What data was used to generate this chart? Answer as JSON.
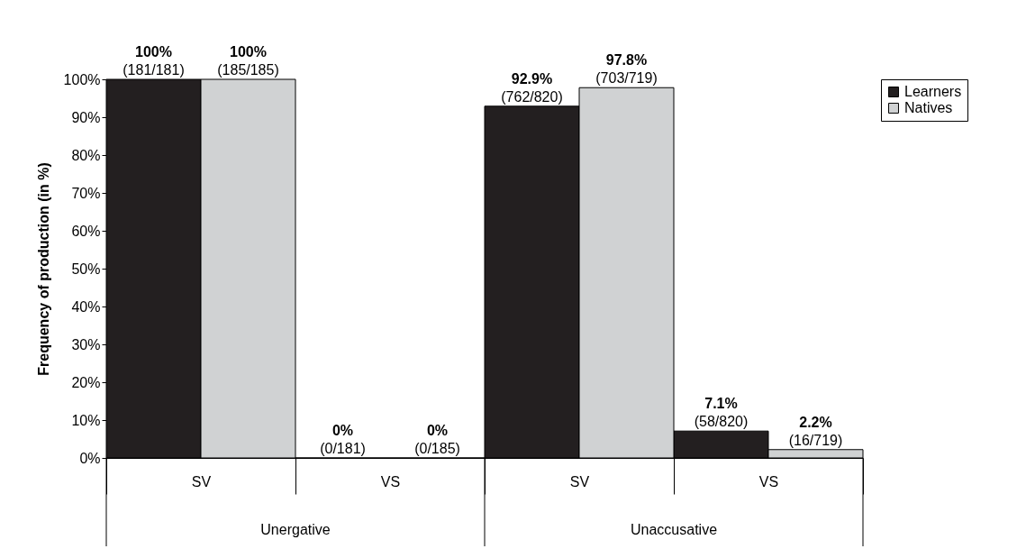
{
  "chart_data": {
    "type": "bar",
    "ylabel": "Frequency of production (in %)",
    "categories": [
      "SV",
      "VS",
      "SV",
      "VS"
    ],
    "series": [
      {
        "name": "Learners",
        "color": "#231f20",
        "values": [
          100,
          0,
          92.9,
          7.1
        ],
        "value_labels": [
          "100%\n(181/181)",
          "0%\n(0/181)",
          "92.9%\n(762/820)",
          "7.1%\n(58/820)"
        ]
      },
      {
        "name": "Natives",
        "color": "#d0d2d3",
        "values": [
          100,
          0,
          97.8,
          2.2
        ],
        "value_labels": [
          "100%\n(185/185)",
          "0%\n(0/185)",
          "97.8%\n(703/719)",
          "2.2%\n(16/719)"
        ]
      }
    ],
    "ylim": [
      0,
      100
    ],
    "yticks": [
      {
        "value": 0,
        "label": "0%"
      },
      {
        "value": 10,
        "label": "10%"
      },
      {
        "value": 20,
        "label": "20%"
      },
      {
        "value": 30,
        "label": "30%"
      },
      {
        "value": 40,
        "label": "40%"
      },
      {
        "value": 50,
        "label": "50%"
      },
      {
        "value": 60,
        "label": "60%"
      },
      {
        "value": 70,
        "label": "70%"
      },
      {
        "value": 80,
        "label": "80%"
      },
      {
        "value": 90,
        "label": "90%"
      },
      {
        "value": 100,
        "label": "100%"
      }
    ],
    "annotations": [
      "Unergative",
      "Unaccusative"
    ],
    "legend": "top right",
    "grid": false
  }
}
